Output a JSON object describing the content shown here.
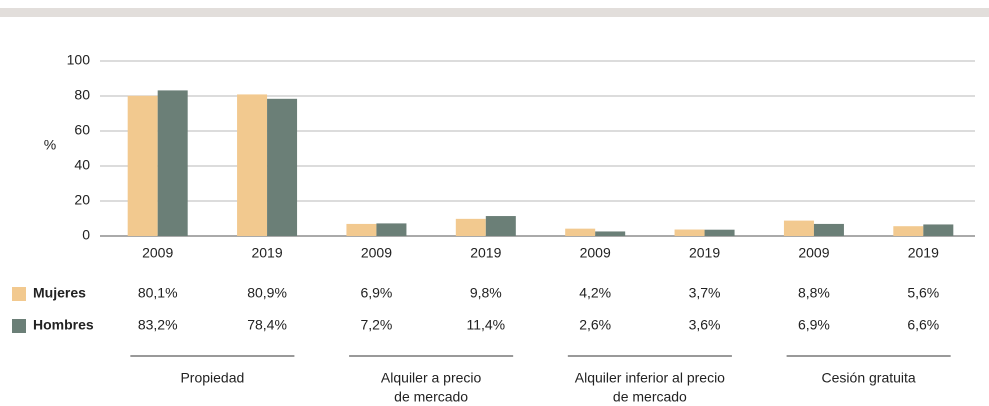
{
  "chart_data": {
    "type": "bar",
    "y_label": "%",
    "categories": [
      "2009",
      "2019",
      "2009",
      "2019",
      "2009",
      "2019",
      "2009",
      "2019"
    ],
    "groups": [
      {
        "lines": [
          "Propiedad"
        ]
      },
      {
        "lines": [
          "Alquiler a precio",
          "de mercado"
        ]
      },
      {
        "lines": [
          "Alquiler inferior al precio",
          "de mercado"
        ]
      },
      {
        "lines": [
          "Cesión gratuita"
        ]
      }
    ],
    "series": [
      {
        "name": "Mujeres",
        "color": "#f2c98f",
        "values": [
          80.1,
          80.9,
          6.9,
          9.8,
          4.2,
          3.7,
          8.8,
          5.6
        ],
        "value_labels": [
          "80,1%",
          "80,9%",
          "6,9%",
          "9,8%",
          "4,2%",
          "3,7%",
          "8,8%",
          "5,6%"
        ]
      },
      {
        "name": "Hombres",
        "color": "#6b7f77",
        "values": [
          83.2,
          78.4,
          7.2,
          11.4,
          2.6,
          3.6,
          6.9,
          6.6
        ],
        "value_labels": [
          "83,2%",
          "78,4%",
          "7,2%",
          "11,4%",
          "2,6%",
          "3,6%",
          "6,9%",
          "6,6%"
        ]
      }
    ],
    "ylim": [
      0,
      100
    ],
    "yticks": [
      0,
      20,
      40,
      60,
      80,
      100
    ],
    "grid": true
  }
}
